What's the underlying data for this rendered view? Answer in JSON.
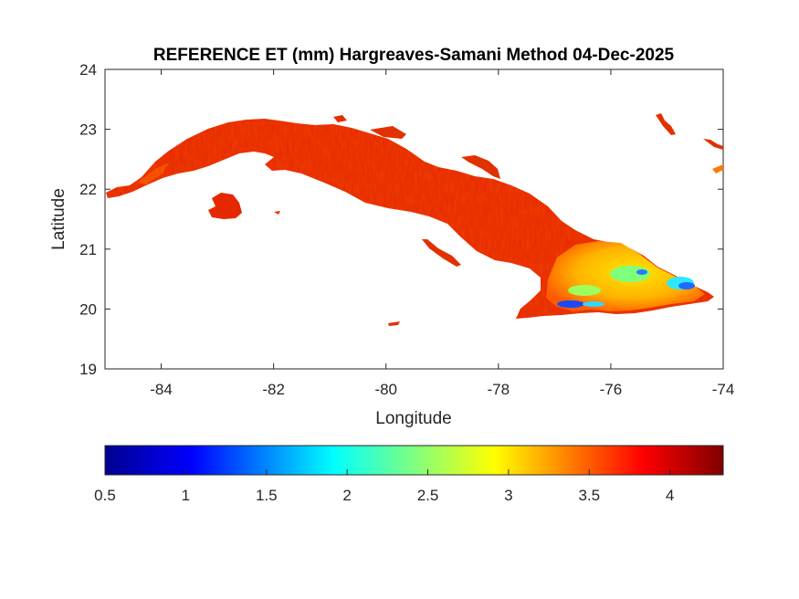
{
  "title": "REFERENCE ET (mm) Hargreaves-Samani Method  04-Dec-2025",
  "axes": {
    "xlabel": "Longitude",
    "ylabel": "Latitude",
    "xlim": [
      -85,
      -74
    ],
    "ylim": [
      19,
      24
    ],
    "xticks": [
      -84,
      -82,
      -80,
      -78,
      -76,
      -74
    ],
    "yticks": [
      19,
      20,
      21,
      22,
      23,
      24
    ]
  },
  "colorbar": {
    "colormap": "jet",
    "min": 0.5,
    "max": 4.33,
    "ticks": [
      0.5,
      1,
      1.5,
      2,
      2.5,
      3,
      3.5,
      4
    ],
    "tick_labels": [
      "0.5",
      "1",
      "1.5",
      "2",
      "2.5",
      "3",
      "3.5",
      "4"
    ],
    "colors": [
      "#00008f",
      "#0000ff",
      "#00ffff",
      "#ffff00",
      "#ff0000",
      "#800000"
    ]
  },
  "map": {
    "region": "Cuba",
    "dominant_value_range": [
      3.5,
      4.2
    ],
    "east_min_values": [
      1.0,
      2.5
    ]
  }
}
